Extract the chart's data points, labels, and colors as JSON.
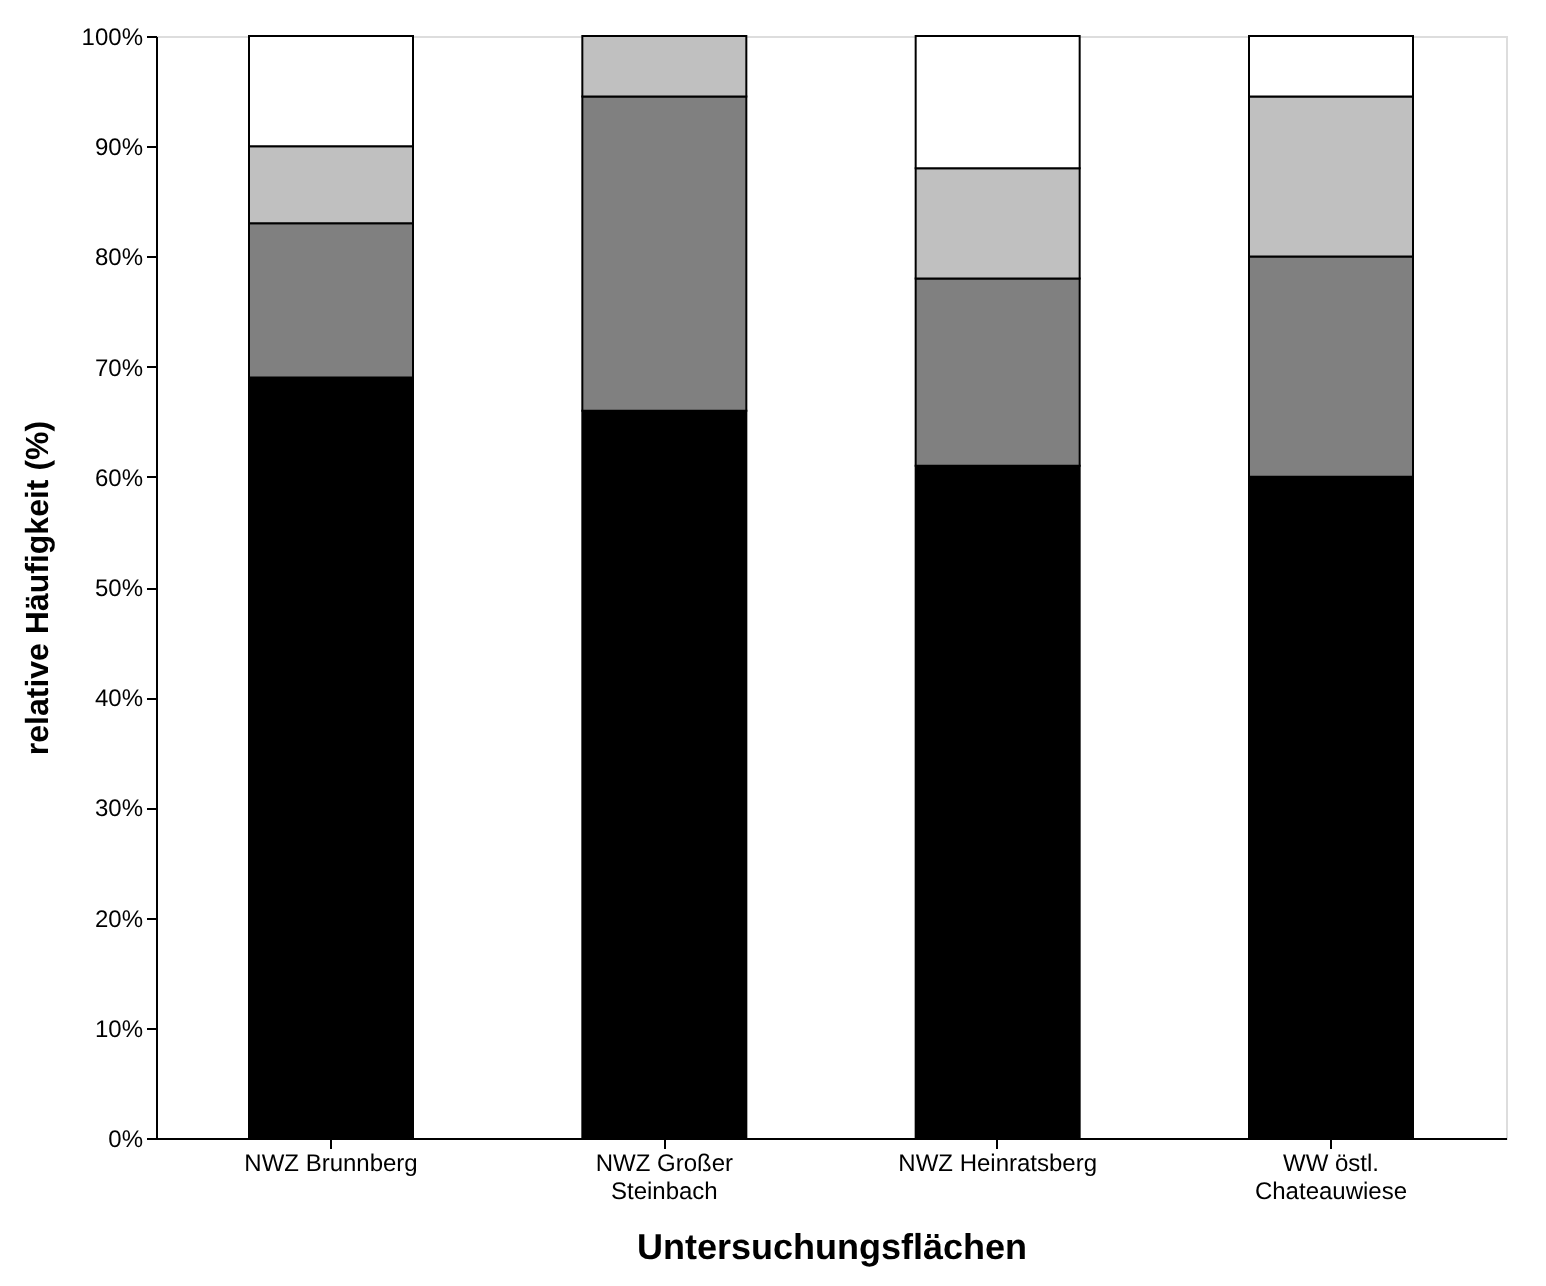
{
  "chart_data": {
    "type": "bar",
    "stacked": true,
    "xlabel": "Untersuchungsflächen",
    "ylabel": "relative Häufigkeit (%)",
    "categories": [
      "NWZ Brunnberg",
      "NWZ Großer Steinbach",
      "NWZ Heinratsberg",
      "WW östl. Chateauwiese"
    ],
    "series": [
      {
        "color": "#000000",
        "values": [
          69,
          66,
          61,
          60
        ]
      },
      {
        "color": "#808080",
        "values": [
          14,
          28.5,
          17,
          20
        ]
      },
      {
        "color": "#c0c0c0",
        "values": [
          7,
          5.5,
          10,
          14.5
        ]
      },
      {
        "color": "#ffffff",
        "values": [
          10,
          null,
          12,
          5.5
        ]
      }
    ],
    "ylim": [
      0,
      100
    ],
    "yticks": [
      {
        "value": 0,
        "label": "0%"
      },
      {
        "value": 10,
        "label": "10%"
      },
      {
        "value": 20,
        "label": "20%"
      },
      {
        "value": 30,
        "label": "30%"
      },
      {
        "value": 40,
        "label": "40%"
      },
      {
        "value": 50,
        "label": "50%"
      },
      {
        "value": 60,
        "label": "60%"
      },
      {
        "value": 70,
        "label": "70%"
      },
      {
        "value": 80,
        "label": "80%"
      },
      {
        "value": 90,
        "label": "90%"
      },
      {
        "value": 100,
        "label": "100%"
      }
    ],
    "grid": false,
    "legend": false
  }
}
